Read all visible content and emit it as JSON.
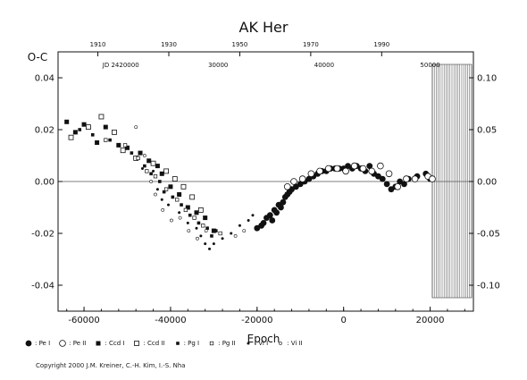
{
  "chart_data": {
    "type": "scatter",
    "title": "AK Her",
    "ylabel": "O-C",
    "xlabel": "Epoch",
    "xlim": [
      -66000,
      30000
    ],
    "ylim": [
      -0.05,
      0.05
    ],
    "y2lim": [
      -0.125,
      0.125
    ],
    "grid": false,
    "x_ticks": [
      "-60000",
      "-40000",
      "-20000",
      "0",
      "20000"
    ],
    "x_tick_values": [
      -60000,
      -40000,
      -20000,
      0,
      20000
    ],
    "y_ticks": [
      "-0.04",
      "-0.02",
      "0.00",
      "0.02",
      "0.04"
    ],
    "y_tick_values": [
      -0.04,
      -0.02,
      0.0,
      0.02,
      0.04
    ],
    "y2_ticks": [
      "-0.10",
      "-0.05",
      "0.00",
      "0.05",
      "0.10"
    ],
    "y2_tick_values": [
      -0.1,
      -0.05,
      0.0,
      0.05,
      0.1
    ],
    "top_year_ticks": [
      "1910",
      "1930",
      "1950",
      "1970",
      "1990"
    ],
    "top_year_epochs": [
      -56800,
      -40400,
      -24000,
      -7600,
      8800
    ],
    "jd_labels": [
      "JD 2420000",
      "30000",
      "40000",
      "50000"
    ],
    "jd_epochs": [
      -51500,
      -29000,
      -4500,
      20000
    ],
    "zero_line": 0.0,
    "future_hatch_from": 20500,
    "series": [
      {
        "name": "Pe I",
        "marker": "filled-circle",
        "points": [
          [
            -20000,
            -0.018
          ],
          [
            -19000,
            -0.017
          ],
          [
            -18500,
            -0.016
          ],
          [
            -17800,
            -0.014
          ],
          [
            -17000,
            -0.013
          ],
          [
            -16500,
            -0.015
          ],
          [
            -16000,
            -0.011
          ],
          [
            -15500,
            -0.012
          ],
          [
            -15000,
            -0.009
          ],
          [
            -14500,
            -0.01
          ],
          [
            -14000,
            -0.008
          ],
          [
            -13500,
            -0.006
          ],
          [
            -13000,
            -0.005
          ],
          [
            -12500,
            -0.004
          ],
          [
            -12000,
            -0.003
          ],
          [
            -11000,
            -0.002
          ],
          [
            -10000,
            -0.001
          ],
          [
            -9000,
            0.0
          ],
          [
            -8000,
            0.001
          ],
          [
            -7000,
            0.002
          ],
          [
            -6000,
            0.003
          ],
          [
            -5000,
            0.004
          ],
          [
            -4000,
            0.004
          ],
          [
            -3000,
            0.005
          ],
          [
            -2000,
            0.005
          ],
          [
            -1000,
            0.005
          ],
          [
            0,
            0.005
          ],
          [
            1000,
            0.006
          ],
          [
            2000,
            0.005
          ],
          [
            3000,
            0.006
          ],
          [
            4000,
            0.005
          ],
          [
            5000,
            0.004
          ],
          [
            6000,
            0.006
          ],
          [
            7000,
            0.003
          ],
          [
            8000,
            0.002
          ],
          [
            9000,
            0.001
          ],
          [
            10000,
            -0.001
          ],
          [
            11000,
            -0.003
          ],
          [
            12000,
            -0.002
          ],
          [
            13000,
            0.0
          ],
          [
            14000,
            -0.001
          ],
          [
            15000,
            0.001
          ],
          [
            17000,
            0.002
          ],
          [
            19000,
            0.003
          ],
          [
            20000,
            0.001
          ]
        ]
      },
      {
        "name": "Pe II",
        "marker": "open-circle",
        "points": [
          [
            -13000,
            -0.002
          ],
          [
            -11500,
            0.0
          ],
          [
            -9500,
            0.001
          ],
          [
            -7500,
            0.003
          ],
          [
            -5500,
            0.004
          ],
          [
            -3500,
            0.005
          ],
          [
            -1500,
            0.005
          ],
          [
            500,
            0.004
          ],
          [
            2500,
            0.006
          ],
          [
            4500,
            0.005
          ],
          [
            6500,
            0.004
          ],
          [
            8500,
            0.006
          ],
          [
            10500,
            0.003
          ],
          [
            12500,
            -0.002
          ],
          [
            14500,
            0.001
          ],
          [
            16500,
            0.001
          ],
          [
            19500,
            0.002
          ],
          [
            20500,
            0.001
          ]
        ]
      },
      {
        "name": "Ccd I",
        "marker": "filled-square",
        "points": [
          [
            -64000,
            0.023
          ],
          [
            -62000,
            0.019
          ],
          [
            -60000,
            0.022
          ],
          [
            -57000,
            0.015
          ],
          [
            -55000,
            0.021
          ],
          [
            -52000,
            0.014
          ],
          [
            -50000,
            0.013
          ],
          [
            -47000,
            0.011
          ],
          [
            -45000,
            0.008
          ],
          [
            -43000,
            0.006
          ],
          [
            -42000,
            0.003
          ],
          [
            -40000,
            -0.002
          ],
          [
            -38000,
            -0.005
          ],
          [
            -36000,
            -0.01
          ],
          [
            -34000,
            -0.012
          ],
          [
            -32000,
            -0.014
          ],
          [
            -30000,
            -0.019
          ]
        ]
      },
      {
        "name": "Ccd II",
        "marker": "open-square",
        "points": [
          [
            -63000,
            0.017
          ],
          [
            -59000,
            0.021
          ],
          [
            -56000,
            0.025
          ],
          [
            -53000,
            0.019
          ],
          [
            -51000,
            0.012
          ],
          [
            -48000,
            0.009
          ],
          [
            -44000,
            0.007
          ],
          [
            -41000,
            0.004
          ],
          [
            -39000,
            0.001
          ],
          [
            -37000,
            -0.002
          ],
          [
            -35000,
            -0.006
          ],
          [
            -33000,
            -0.011
          ]
        ]
      },
      {
        "name": "Pg I",
        "marker": "small-filled-square",
        "points": [
          [
            -61000,
            0.02
          ],
          [
            -58000,
            0.018
          ],
          [
            -54000,
            0.016
          ],
          [
            -49000,
            0.011
          ],
          [
            -46000,
            0.006
          ],
          [
            -44500,
            0.003
          ],
          [
            -42500,
            0.0
          ],
          [
            -41500,
            -0.004
          ],
          [
            -39500,
            -0.006
          ],
          [
            -37500,
            -0.009
          ],
          [
            -35500,
            -0.013
          ],
          [
            -33500,
            -0.016
          ],
          [
            -31500,
            -0.018
          ],
          [
            -30500,
            -0.021
          ],
          [
            -29500,
            -0.019
          ]
        ]
      },
      {
        "name": "Pg II",
        "marker": "small-open-square",
        "points": [
          [
            -55000,
            0.016
          ],
          [
            -50500,
            0.014
          ],
          [
            -47500,
            0.009
          ],
          [
            -45500,
            0.004
          ],
          [
            -43500,
            0.002
          ],
          [
            -41000,
            -0.003
          ],
          [
            -38500,
            -0.007
          ],
          [
            -36500,
            -0.011
          ],
          [
            -34500,
            -0.014
          ],
          [
            -32500,
            -0.017
          ],
          [
            -28500,
            -0.02
          ]
        ]
      },
      {
        "name": "Vi I",
        "marker": "tiny-dot",
        "points": [
          [
            -46500,
            0.005
          ],
          [
            -44000,
            0.004
          ],
          [
            -43000,
            -0.003
          ],
          [
            -42000,
            -0.007
          ],
          [
            -40500,
            -0.009
          ],
          [
            -38000,
            -0.012
          ],
          [
            -36000,
            -0.016
          ],
          [
            -34000,
            -0.018
          ],
          [
            -33000,
            -0.021
          ],
          [
            -32000,
            -0.024
          ],
          [
            -31000,
            -0.026
          ],
          [
            -30000,
            -0.024
          ],
          [
            -28000,
            -0.022
          ],
          [
            -26000,
            -0.02
          ],
          [
            -24000,
            -0.017
          ],
          [
            -22000,
            -0.015
          ],
          [
            -21000,
            -0.013
          ]
        ]
      },
      {
        "name": "Vi II",
        "marker": "tiny-open-dot",
        "points": [
          [
            -48000,
            0.021
          ],
          [
            -46000,
            0.01
          ],
          [
            -44500,
            0.0
          ],
          [
            -43500,
            -0.005
          ],
          [
            -41800,
            -0.011
          ],
          [
            -39800,
            -0.015
          ],
          [
            -37800,
            -0.014
          ],
          [
            -35800,
            -0.019
          ],
          [
            -33800,
            -0.022
          ],
          [
            -31800,
            -0.019
          ],
          [
            -25000,
            -0.021
          ],
          [
            -23000,
            -0.019
          ]
        ]
      }
    ]
  },
  "legend": [
    {
      "label": "Pe I",
      "marker": "filled-circle"
    },
    {
      "label": "Pe II",
      "marker": "open-circle"
    },
    {
      "label": "Ccd I",
      "marker": "filled-square"
    },
    {
      "label": "Ccd II",
      "marker": "open-square"
    },
    {
      "label": "Pg I",
      "marker": "small-filled-square"
    },
    {
      "label": "Pg II",
      "marker": "small-open-square"
    },
    {
      "label": "Vi I",
      "marker": "tiny-dot"
    },
    {
      "label": "Vi II",
      "marker": "tiny-open-dot"
    }
  ],
  "copyright": "Copyright 2000 J.M. Kreiner, C.-H. Kim, I.-S. Nha",
  "colors": {
    "ink": "#111111",
    "zero_line": "#555555",
    "hatch": "#444444"
  }
}
